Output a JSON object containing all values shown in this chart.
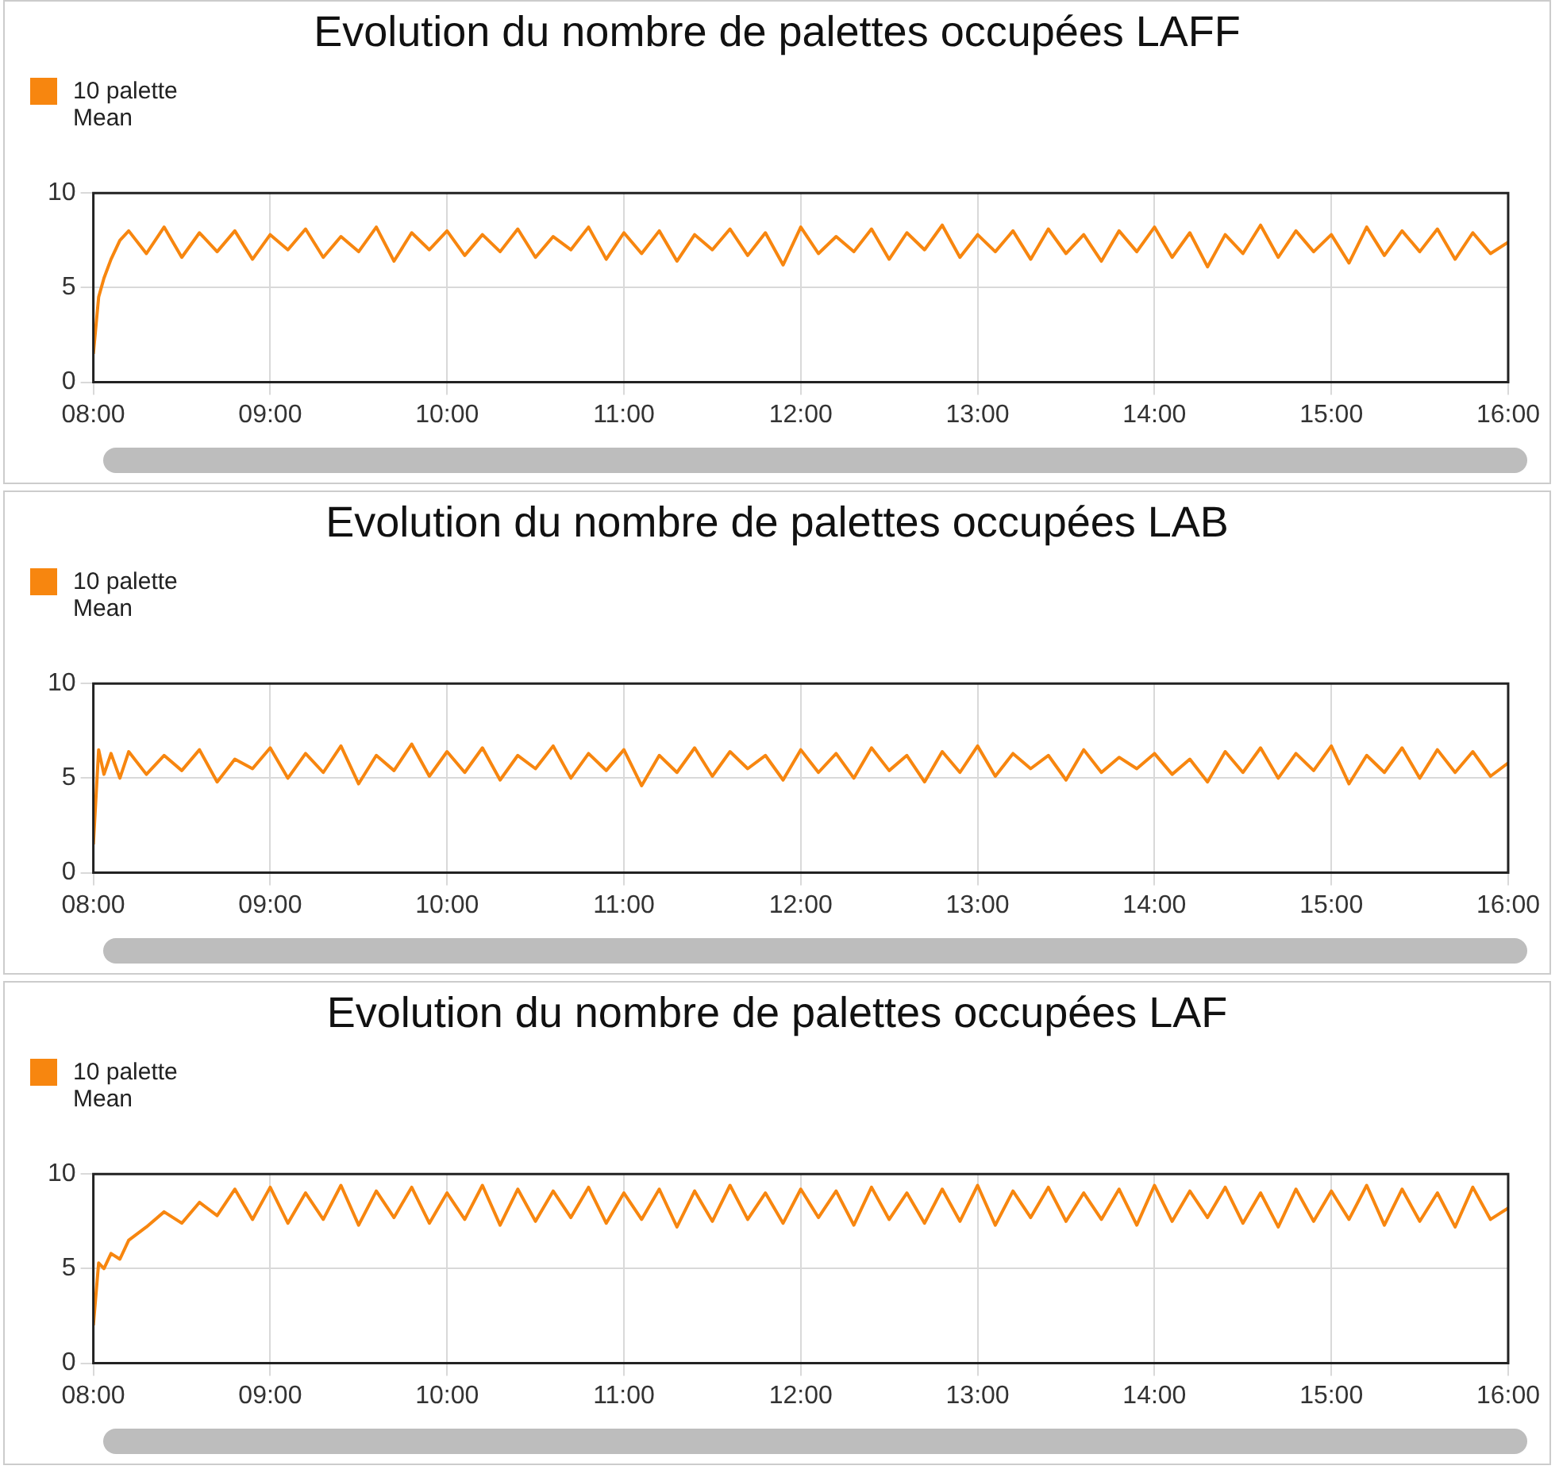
{
  "chart_data": [
    {
      "type": "line",
      "title": "Evolution du nombre de palettes occupées LAFF",
      "legend": "top left",
      "grid": true,
      "marker": "none",
      "xlim": [
        8,
        16
      ],
      "ylim": [
        0,
        10
      ],
      "yticks": [
        0,
        5,
        10
      ],
      "xticks": [
        {
          "value": 8,
          "label": "08:00"
        },
        {
          "value": 9,
          "label": "09:00"
        },
        {
          "value": 10,
          "label": "10:00"
        },
        {
          "value": 11,
          "label": "11:00"
        },
        {
          "value": 12,
          "label": "12:00"
        },
        {
          "value": 13,
          "label": "13:00"
        },
        {
          "value": 14,
          "label": "14:00"
        },
        {
          "value": 15,
          "label": "15:00"
        },
        {
          "value": 16,
          "label": "16:00"
        }
      ],
      "x": [
        8,
        8.03,
        8.06,
        8.1,
        8.15,
        8.2,
        8.3,
        8.4,
        8.5,
        8.6,
        8.7,
        8.8,
        8.9,
        9.0,
        9.1,
        9.2,
        9.3,
        9.4,
        9.5,
        9.6,
        9.7,
        9.8,
        9.9,
        10.0,
        10.1,
        10.2,
        10.3,
        10.4,
        10.5,
        10.6,
        10.7,
        10.8,
        10.9,
        11.0,
        11.1,
        11.2,
        11.3,
        11.4,
        11.5,
        11.6,
        11.7,
        11.8,
        11.9,
        12.0,
        12.1,
        12.2,
        12.3,
        12.4,
        12.5,
        12.6,
        12.7,
        12.8,
        12.9,
        13.0,
        13.1,
        13.2,
        13.3,
        13.4,
        13.5,
        13.6,
        13.7,
        13.8,
        13.9,
        14.0,
        14.1,
        14.2,
        14.3,
        14.4,
        14.5,
        14.6,
        14.7,
        14.8,
        14.9,
        15.0,
        15.1,
        15.2,
        15.3,
        15.4,
        15.5,
        15.6,
        15.7,
        15.8,
        15.9,
        16.0
      ],
      "series": [
        {
          "name": "10 palette Mean",
          "color": "#f7860f",
          "values": [
            1.5,
            4.5,
            5.5,
            6.5,
            7.5,
            8.0,
            6.8,
            8.2,
            6.6,
            7.9,
            6.9,
            8.0,
            6.5,
            7.8,
            7.0,
            8.1,
            6.6,
            7.7,
            6.9,
            8.2,
            6.4,
            7.9,
            7.0,
            8.0,
            6.7,
            7.8,
            6.9,
            8.1,
            6.6,
            7.7,
            7.0,
            8.2,
            6.5,
            7.9,
            6.8,
            8.0,
            6.4,
            7.8,
            7.0,
            8.1,
            6.7,
            7.9,
            6.2,
            8.2,
            6.8,
            7.7,
            6.9,
            8.1,
            6.5,
            7.9,
            7.0,
            8.3,
            6.6,
            7.8,
            6.9,
            8.0,
            6.5,
            8.1,
            6.8,
            7.8,
            6.4,
            8.0,
            6.9,
            8.2,
            6.6,
            7.9,
            6.1,
            7.8,
            6.8,
            8.3,
            6.6,
            8.0,
            6.9,
            7.8,
            6.3,
            8.2,
            6.7,
            8.0,
            6.9,
            8.1,
            6.5,
            7.9,
            6.8,
            7.4
          ]
        }
      ]
    },
    {
      "type": "line",
      "title": "Evolution du nombre de palettes occupées LAB",
      "legend": "top left",
      "grid": true,
      "marker": "none",
      "xlim": [
        8,
        16
      ],
      "ylim": [
        0,
        10
      ],
      "yticks": [
        0,
        5,
        10
      ],
      "xticks": [
        {
          "value": 8,
          "label": "08:00"
        },
        {
          "value": 9,
          "label": "09:00"
        },
        {
          "value": 10,
          "label": "10:00"
        },
        {
          "value": 11,
          "label": "11:00"
        },
        {
          "value": 12,
          "label": "12:00"
        },
        {
          "value": 13,
          "label": "13:00"
        },
        {
          "value": 14,
          "label": "14:00"
        },
        {
          "value": 15,
          "label": "15:00"
        },
        {
          "value": 16,
          "label": "16:00"
        }
      ],
      "x": [
        8,
        8.03,
        8.06,
        8.1,
        8.15,
        8.2,
        8.3,
        8.4,
        8.5,
        8.6,
        8.7,
        8.8,
        8.9,
        9.0,
        9.1,
        9.2,
        9.3,
        9.4,
        9.5,
        9.6,
        9.7,
        9.8,
        9.9,
        10.0,
        10.1,
        10.2,
        10.3,
        10.4,
        10.5,
        10.6,
        10.7,
        10.8,
        10.9,
        11.0,
        11.1,
        11.2,
        11.3,
        11.4,
        11.5,
        11.6,
        11.7,
        11.8,
        11.9,
        12.0,
        12.1,
        12.2,
        12.3,
        12.4,
        12.5,
        12.6,
        12.7,
        12.8,
        12.9,
        13.0,
        13.1,
        13.2,
        13.3,
        13.4,
        13.5,
        13.6,
        13.7,
        13.8,
        13.9,
        14.0,
        14.1,
        14.2,
        14.3,
        14.4,
        14.5,
        14.6,
        14.7,
        14.8,
        14.9,
        15.0,
        15.1,
        15.2,
        15.3,
        15.4,
        15.5,
        15.6,
        15.7,
        15.8,
        15.9,
        16.0
      ],
      "series": [
        {
          "name": "10 palette Mean",
          "color": "#f7860f",
          "values": [
            1.5,
            6.5,
            5.2,
            6.3,
            5.0,
            6.4,
            5.2,
            6.2,
            5.4,
            6.5,
            4.8,
            6.0,
            5.5,
            6.6,
            5.0,
            6.3,
            5.3,
            6.7,
            4.7,
            6.2,
            5.4,
            6.8,
            5.1,
            6.4,
            5.3,
            6.6,
            4.9,
            6.2,
            5.5,
            6.7,
            5.0,
            6.3,
            5.4,
            6.5,
            4.6,
            6.2,
            5.3,
            6.6,
            5.1,
            6.4,
            5.5,
            6.2,
            4.9,
            6.5,
            5.3,
            6.3,
            5.0,
            6.6,
            5.4,
            6.2,
            4.8,
            6.4,
            5.3,
            6.7,
            5.1,
            6.3,
            5.5,
            6.2,
            4.9,
            6.5,
            5.3,
            6.1,
            5.5,
            6.3,
            5.2,
            6.0,
            4.8,
            6.4,
            5.3,
            6.6,
            5.0,
            6.3,
            5.4,
            6.7,
            4.7,
            6.2,
            5.3,
            6.6,
            5.0,
            6.5,
            5.3,
            6.4,
            5.1,
            5.8
          ]
        }
      ]
    },
    {
      "type": "line",
      "title": "Evolution du nombre de palettes occupées LAF",
      "legend": "top left",
      "grid": true,
      "marker": "none",
      "xlim": [
        8,
        16
      ],
      "ylim": [
        0,
        10
      ],
      "yticks": [
        0,
        5,
        10
      ],
      "xticks": [
        {
          "value": 8,
          "label": "08:00"
        },
        {
          "value": 9,
          "label": "09:00"
        },
        {
          "value": 10,
          "label": "10:00"
        },
        {
          "value": 11,
          "label": "11:00"
        },
        {
          "value": 12,
          "label": "12:00"
        },
        {
          "value": 13,
          "label": "13:00"
        },
        {
          "value": 14,
          "label": "14:00"
        },
        {
          "value": 15,
          "label": "15:00"
        },
        {
          "value": 16,
          "label": "16:00"
        }
      ],
      "x": [
        8,
        8.03,
        8.06,
        8.1,
        8.15,
        8.2,
        8.3,
        8.4,
        8.5,
        8.6,
        8.7,
        8.8,
        8.9,
        9.0,
        9.1,
        9.2,
        9.3,
        9.4,
        9.5,
        9.6,
        9.7,
        9.8,
        9.9,
        10.0,
        10.1,
        10.2,
        10.3,
        10.4,
        10.5,
        10.6,
        10.7,
        10.8,
        10.9,
        11.0,
        11.1,
        11.2,
        11.3,
        11.4,
        11.5,
        11.6,
        11.7,
        11.8,
        11.9,
        12.0,
        12.1,
        12.2,
        12.3,
        12.4,
        12.5,
        12.6,
        12.7,
        12.8,
        12.9,
        13.0,
        13.1,
        13.2,
        13.3,
        13.4,
        13.5,
        13.6,
        13.7,
        13.8,
        13.9,
        14.0,
        14.1,
        14.2,
        14.3,
        14.4,
        14.5,
        14.6,
        14.7,
        14.8,
        14.9,
        15.0,
        15.1,
        15.2,
        15.3,
        15.4,
        15.5,
        15.6,
        15.7,
        15.8,
        15.9,
        16.0
      ],
      "series": [
        {
          "name": "10 palette Mean",
          "color": "#f7860f",
          "values": [
            2.0,
            5.3,
            5.0,
            5.8,
            5.5,
            6.5,
            7.2,
            8.0,
            7.4,
            8.5,
            7.8,
            9.2,
            7.6,
            9.3,
            7.4,
            9.0,
            7.6,
            9.4,
            7.3,
            9.1,
            7.7,
            9.3,
            7.4,
            9.0,
            7.6,
            9.4,
            7.3,
            9.2,
            7.5,
            9.1,
            7.7,
            9.3,
            7.4,
            9.0,
            7.6,
            9.2,
            7.2,
            9.1,
            7.5,
            9.4,
            7.6,
            9.0,
            7.4,
            9.2,
            7.7,
            9.1,
            7.3,
            9.3,
            7.6,
            9.0,
            7.4,
            9.2,
            7.5,
            9.4,
            7.3,
            9.1,
            7.7,
            9.3,
            7.5,
            9.0,
            7.6,
            9.2,
            7.3,
            9.4,
            7.5,
            9.1,
            7.7,
            9.3,
            7.4,
            9.0,
            7.2,
            9.2,
            7.5,
            9.1,
            7.6,
            9.4,
            7.3,
            9.2,
            7.5,
            9.0,
            7.2,
            9.3,
            7.6,
            8.2
          ]
        }
      ]
    }
  ]
}
